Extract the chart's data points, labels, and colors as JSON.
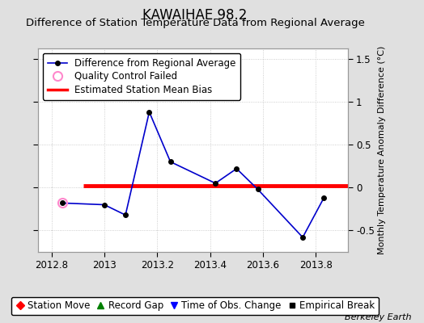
{
  "title": "KAWAIHAE 98.2",
  "subtitle": "Difference of Station Temperature Data from Regional Average",
  "ylabel_right": "Monthly Temperature Anomaly Difference (°C)",
  "watermark": "Berkeley Earth",
  "xlim": [
    2012.75,
    2013.92
  ],
  "ylim": [
    -0.75,
    1.62
  ],
  "yticks": [
    -0.5,
    0.0,
    0.5,
    1.0,
    1.5
  ],
  "xticks": [
    2012.8,
    2013.0,
    2013.2,
    2013.4,
    2013.6,
    2013.8
  ],
  "xticklabels": [
    "2012.8",
    "2013",
    "2013.2",
    "2013.4",
    "2013.6",
    "2013.8"
  ],
  "line_x": [
    2012.84,
    2013.0,
    2013.08,
    2013.17,
    2013.25,
    2013.42,
    2013.5,
    2013.58,
    2013.75,
    2013.83
  ],
  "line_y": [
    -0.18,
    -0.2,
    -0.32,
    0.88,
    0.3,
    0.05,
    0.22,
    -0.02,
    -0.58,
    -0.12
  ],
  "qc_fail_x": [
    2012.84
  ],
  "qc_fail_y": [
    -0.18
  ],
  "bias_value": 0.02,
  "bias_xstart": 2012.92,
  "bias_xend": 2013.92,
  "line_color": "#0000cc",
  "line_marker_color": "#000000",
  "bias_color": "#ff0000",
  "qc_color": "#ff88cc",
  "background_color": "#e0e0e0",
  "plot_bg_color": "#ffffff",
  "grid_color": "#c0c0c0",
  "title_fontsize": 12,
  "subtitle_fontsize": 9.5,
  "tick_fontsize": 8.5,
  "legend_fontsize": 8.5
}
